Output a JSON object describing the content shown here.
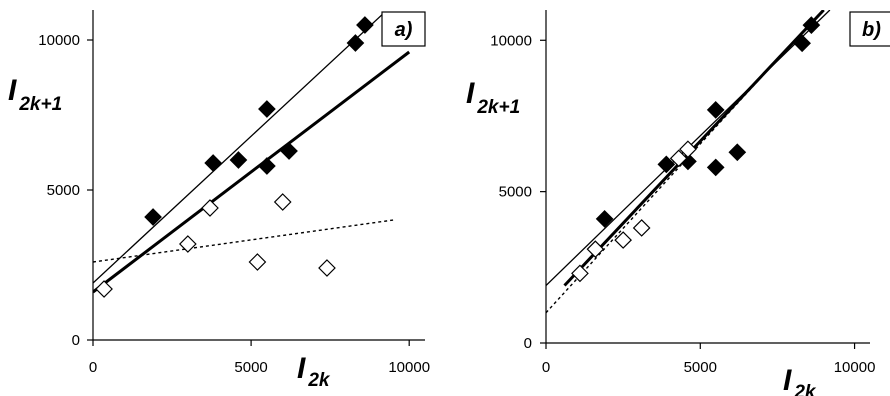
{
  "chart_data": [
    {
      "type": "scatter",
      "panel_label": "a)",
      "xlabel": {
        "main": "I",
        "sub": "2k"
      },
      "ylabel": {
        "main": "I",
        "sub": "2k+1"
      },
      "xlim": [
        0,
        10500
      ],
      "ylim": [
        0,
        11000
      ],
      "xticks": [
        {
          "value": 0,
          "label": "0"
        },
        {
          "value": 5000,
          "label": "5000"
        },
        {
          "value": 10000,
          "label": "10000"
        }
      ],
      "yticks": [
        {
          "value": 0,
          "label": "0"
        },
        {
          "value": 5000,
          "label": "5000"
        },
        {
          "value": 10000,
          "label": "10000"
        }
      ],
      "grid": false,
      "series": [
        {
          "marker": "filled-diamond",
          "points": [
            [
              1900,
              4100
            ],
            [
              3800,
              5900
            ],
            [
              4600,
              6000
            ],
            [
              5500,
              7700
            ],
            [
              5500,
              5800
            ],
            [
              6200,
              6300
            ],
            [
              8300,
              9900
            ],
            [
              8600,
              10500
            ]
          ]
        },
        {
          "marker": "open-diamond",
          "points": [
            [
              350,
              1700
            ],
            [
              3000,
              3200
            ],
            [
              3700,
              4400
            ],
            [
              5200,
              2600
            ],
            [
              6000,
              4600
            ],
            [
              7400,
              2400
            ]
          ]
        }
      ],
      "lines": [
        {
          "style": "thin",
          "from": [
            0,
            1900
          ],
          "to": [
            9200,
            10900
          ]
        },
        {
          "style": "thick",
          "from": [
            0,
            1600
          ],
          "to": [
            10000,
            9600
          ]
        },
        {
          "style": "dotted",
          "from": [
            0,
            2600
          ],
          "to": [
            9500,
            4000
          ]
        }
      ]
    },
    {
      "type": "scatter",
      "panel_label": "b)",
      "xlabel": {
        "main": "I",
        "sub": "2k"
      },
      "ylabel": {
        "main": "I",
        "sub": "2k+1"
      },
      "xlim": [
        0,
        10500
      ],
      "ylim": [
        0,
        11000
      ],
      "xticks": [
        {
          "value": 0,
          "label": "0"
        },
        {
          "value": 5000,
          "label": "5000"
        },
        {
          "value": 10000,
          "label": "10000"
        }
      ],
      "yticks": [
        {
          "value": 0,
          "label": "0"
        },
        {
          "value": 5000,
          "label": "5000"
        },
        {
          "value": 10000,
          "label": "10000"
        }
      ],
      "grid": false,
      "series": [
        {
          "marker": "filled-diamond",
          "points": [
            [
              1900,
              4100
            ],
            [
              3900,
              5900
            ],
            [
              4600,
              6000
            ],
            [
              5500,
              7700
            ],
            [
              5500,
              5800
            ],
            [
              6200,
              6300
            ],
            [
              8300,
              9900
            ],
            [
              8600,
              10500
            ]
          ]
        },
        {
          "marker": "open-diamond",
          "points": [
            [
              1100,
              2300
            ],
            [
              1600,
              3100
            ],
            [
              2500,
              3400
            ],
            [
              3100,
              3800
            ],
            [
              4300,
              6100
            ],
            [
              4600,
              6400
            ]
          ]
        }
      ],
      "lines": [
        {
          "style": "thin",
          "from": [
            0,
            1900
          ],
          "to": [
            9200,
            11000
          ]
        },
        {
          "style": "thick",
          "from": [
            600,
            1900
          ],
          "to": [
            9000,
            11000
          ]
        },
        {
          "style": "dotted",
          "from": [
            0,
            1000
          ],
          "to": [
            7800,
            9700
          ]
        }
      ]
    }
  ]
}
